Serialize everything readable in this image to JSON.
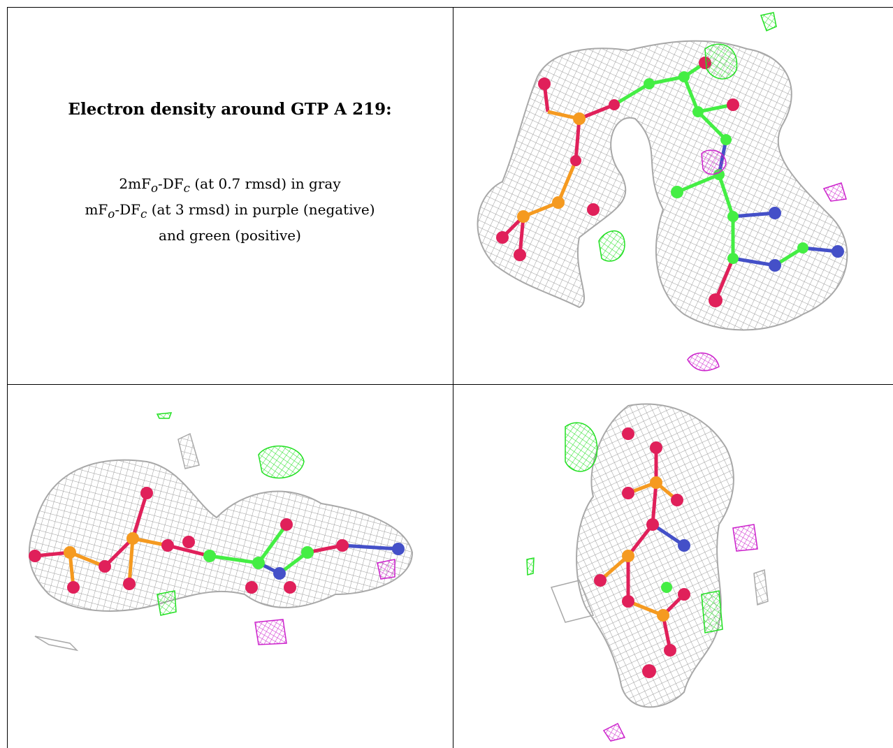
{
  "figure": {
    "title": "Electron density around GTP A 219:",
    "legend": {
      "line1": {
        "prefix": "2mF",
        "sub1": "o",
        "mid": "-DF",
        "sub2": "c",
        "rest": " (at 0.7 rmsd) in gray"
      },
      "line2": {
        "prefix": "mF",
        "sub1": "o",
        "mid": "-DF",
        "sub2": "c",
        "rest": " (at 3 rmsd) in purple (negative)"
      },
      "line3": "and green (positive)"
    },
    "colors": {
      "mesh_gray": "#9a9a9a",
      "mesh_green": "#22e022",
      "mesh_purple": "#cc22cc",
      "carbon": "#44ee44",
      "oxygen": "#e0205a",
      "phosphorus": "#f59a20",
      "nitrogen": "#4450c8"
    }
  }
}
